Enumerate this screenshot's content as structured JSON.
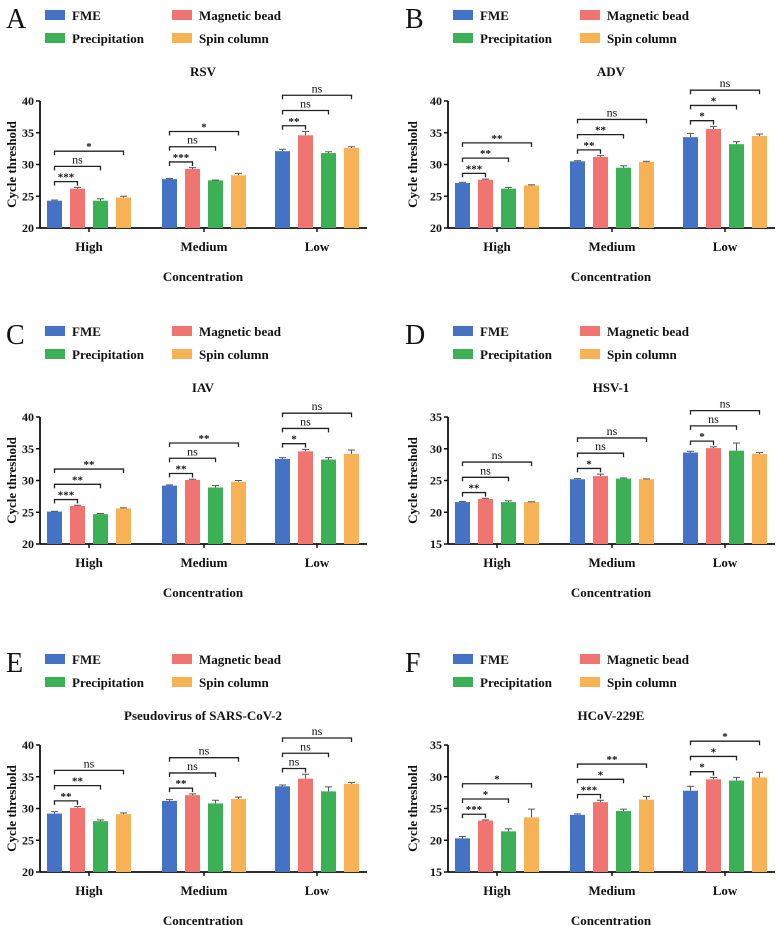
{
  "legend": [
    {
      "name": "FME",
      "color": "#4472c4"
    },
    {
      "name": "Magnetic bead",
      "color": "#f07470"
    },
    {
      "name": "Precipitation",
      "color": "#3cb054"
    },
    {
      "name": "Spin column",
      "color": "#f8b256"
    }
  ],
  "chart_data": [
    {
      "panel_label": "A",
      "type": "bar",
      "title": "RSV",
      "ylabel": "Cycle threshold",
      "xlabel": "Concentration",
      "ylim": [
        20,
        40
      ],
      "yticks": [
        20,
        25,
        30,
        35,
        40
      ],
      "categories": [
        "High",
        "Medium",
        "Low"
      ],
      "series": [
        {
          "name": "FME",
          "values": [
            24.3,
            27.7,
            32.1
          ],
          "errors": [
            0.1,
            0.1,
            0.3
          ]
        },
        {
          "name": "Magnetic bead",
          "values": [
            26.2,
            29.3,
            34.6
          ],
          "errors": [
            0.2,
            0.2,
            0.6
          ]
        },
        {
          "name": "Precipitation",
          "values": [
            24.3,
            27.5,
            31.8
          ],
          "errors": [
            0.3,
            0.05,
            0.2
          ]
        },
        {
          "name": "Spin column",
          "values": [
            24.8,
            28.3,
            32.6
          ],
          "errors": [
            0.2,
            0.3,
            0.2
          ]
        }
      ],
      "significance_vs_FME": [
        [
          "***",
          "ns",
          "*"
        ],
        [
          "***",
          "ns",
          "*"
        ],
        [
          "**",
          "ns",
          "ns"
        ]
      ]
    },
    {
      "panel_label": "B",
      "type": "bar",
      "title": "ADV",
      "ylabel": "Cycle threshold",
      "xlabel": "Concentration",
      "ylim": [
        20,
        40
      ],
      "yticks": [
        20,
        25,
        30,
        35,
        40
      ],
      "categories": [
        "High",
        "Medium",
        "Low"
      ],
      "series": [
        {
          "name": "FME",
          "values": [
            27.1,
            30.5,
            34.3
          ],
          "errors": [
            0.1,
            0.1,
            0.6
          ]
        },
        {
          "name": "Magnetic bead",
          "values": [
            27.6,
            31.2,
            35.6
          ],
          "errors": [
            0.1,
            0.2,
            0.4
          ]
        },
        {
          "name": "Precipitation",
          "values": [
            26.2,
            29.5,
            33.2
          ],
          "errors": [
            0.2,
            0.3,
            0.4
          ]
        },
        {
          "name": "Spin column",
          "values": [
            26.7,
            30.4,
            34.5
          ],
          "errors": [
            0.1,
            0.1,
            0.3
          ]
        }
      ],
      "significance_vs_FME": [
        [
          "***",
          "**",
          "**"
        ],
        [
          "**",
          "**",
          "ns"
        ],
        [
          "*",
          "*",
          "ns"
        ]
      ]
    },
    {
      "panel_label": "C",
      "type": "bar",
      "title": "IAV",
      "ylabel": "Cycle threshold",
      "xlabel": "Concentration",
      "ylim": [
        20,
        40
      ],
      "yticks": [
        20,
        25,
        30,
        35,
        40
      ],
      "categories": [
        "High",
        "Medium",
        "Low"
      ],
      "series": [
        {
          "name": "FME",
          "values": [
            25.1,
            29.2,
            33.4
          ],
          "errors": [
            0.05,
            0.1,
            0.2
          ]
        },
        {
          "name": "Magnetic bead",
          "values": [
            26.0,
            30.1,
            34.6
          ],
          "errors": [
            0.1,
            0.1,
            0.3
          ]
        },
        {
          "name": "Precipitation",
          "values": [
            24.7,
            28.9,
            33.3
          ],
          "errors": [
            0.1,
            0.3,
            0.3
          ]
        },
        {
          "name": "Spin column",
          "values": [
            25.6,
            29.8,
            34.2
          ],
          "errors": [
            0.1,
            0.2,
            0.6
          ]
        }
      ],
      "significance_vs_FME": [
        [
          "***",
          "**",
          "**"
        ],
        [
          "**",
          "ns",
          "**"
        ],
        [
          "*",
          "ns",
          "ns"
        ]
      ]
    },
    {
      "panel_label": "D",
      "type": "bar",
      "title": "HSV-1",
      "ylabel": "Cycle threshold",
      "xlabel": "Concentration",
      "ylim": [
        15,
        35
      ],
      "yticks": [
        15,
        20,
        25,
        30,
        35
      ],
      "categories": [
        "High",
        "Medium",
        "Low"
      ],
      "series": [
        {
          "name": "FME",
          "values": [
            21.6,
            25.2,
            29.4
          ],
          "errors": [
            0.1,
            0.1,
            0.2
          ]
        },
        {
          "name": "Magnetic bead",
          "values": [
            22.1,
            25.7,
            30.1
          ],
          "errors": [
            0.1,
            0.3,
            0.2
          ]
        },
        {
          "name": "Precipitation",
          "values": [
            21.6,
            25.3,
            29.7
          ],
          "errors": [
            0.2,
            0.1,
            1.2
          ]
        },
        {
          "name": "Spin column",
          "values": [
            21.6,
            25.2,
            29.2
          ],
          "errors": [
            0.05,
            0.05,
            0.2
          ]
        }
      ],
      "significance_vs_FME": [
        [
          "**",
          "ns",
          "ns"
        ],
        [
          "*",
          "ns",
          "ns"
        ],
        [
          "*",
          "ns",
          "ns"
        ]
      ]
    },
    {
      "panel_label": "E",
      "type": "bar",
      "title": "Pseudovirus of SARS-CoV-2",
      "ylabel": "Cycle threshold",
      "xlabel": "Concentration",
      "ylim": [
        20,
        40
      ],
      "yticks": [
        20,
        25,
        30,
        35,
        40
      ],
      "categories": [
        "High",
        "Medium",
        "Low"
      ],
      "series": [
        {
          "name": "FME",
          "values": [
            29.2,
            31.2,
            33.5
          ],
          "errors": [
            0.3,
            0.2,
            0.2
          ]
        },
        {
          "name": "Magnetic bead",
          "values": [
            30.1,
            32.1,
            34.7
          ],
          "errors": [
            0.2,
            0.2,
            0.7
          ]
        },
        {
          "name": "Precipitation",
          "values": [
            28.0,
            30.8,
            32.7
          ],
          "errors": [
            0.2,
            0.5,
            0.7
          ]
        },
        {
          "name": "Spin column",
          "values": [
            29.1,
            31.5,
            33.9
          ],
          "errors": [
            0.2,
            0.3,
            0.2
          ]
        }
      ],
      "significance_vs_FME": [
        [
          "**",
          "**",
          "ns"
        ],
        [
          "**",
          "ns",
          "ns"
        ],
        [
          "ns",
          "ns",
          "ns"
        ]
      ]
    },
    {
      "panel_label": "F",
      "type": "bar",
      "title": "HCoV-229E",
      "ylabel": "Cycle threshold",
      "xlabel": "Concentration",
      "ylim": [
        15,
        35
      ],
      "yticks": [
        15,
        20,
        25,
        30,
        35
      ],
      "categories": [
        "High",
        "Medium",
        "Low"
      ],
      "series": [
        {
          "name": "FME",
          "values": [
            20.3,
            24.0,
            27.8
          ],
          "errors": [
            0.3,
            0.15,
            0.7
          ]
        },
        {
          "name": "Magnetic bead",
          "values": [
            23.1,
            26.0,
            29.6
          ],
          "errors": [
            0.1,
            0.3,
            0.3
          ]
        },
        {
          "name": "Precipitation",
          "values": [
            21.4,
            24.6,
            29.4
          ],
          "errors": [
            0.4,
            0.3,
            0.5
          ]
        },
        {
          "name": "Spin column",
          "values": [
            23.6,
            26.4,
            29.9
          ],
          "errors": [
            1.3,
            0.5,
            0.8
          ]
        }
      ],
      "significance_vs_FME": [
        [
          "***",
          "*",
          "*"
        ],
        [
          "***",
          "*",
          "**"
        ],
        [
          "*",
          "*",
          "*"
        ]
      ]
    }
  ]
}
